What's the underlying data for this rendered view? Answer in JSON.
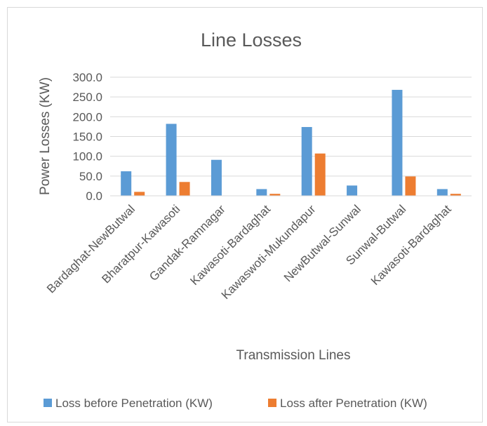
{
  "chart_data": {
    "type": "bar",
    "title": "Line Losses",
    "xlabel": "Transmission Lines",
    "ylabel": "Power Losses (KW)",
    "ylim": [
      0,
      300
    ],
    "yticks": [
      "0.0",
      "50.0",
      "100.0",
      "150.0",
      "200.0",
      "250.0",
      "300.0"
    ],
    "grid": true,
    "legend_position": "bottom",
    "categories": [
      "Bardaghat-NewButwal",
      "Bharatpur-Kawasoti",
      "Gandak-Ramnagar",
      "Kawasoti-Bardaghat",
      "Kawaswoti-Mukundapur",
      "NewButwal-Sunwal",
      "Sunwal-Butwal",
      "Kawasoti-Bardaghat"
    ],
    "series": [
      {
        "name": "Loss before Penetration (KW)",
        "color": "#5b9bd5",
        "values": [
          62,
          182,
          91,
          17,
          174,
          26,
          268,
          17
        ]
      },
      {
        "name": "Loss after Penetration (KW)",
        "color": "#ed7d31",
        "values": [
          10,
          35,
          0,
          5,
          107,
          0,
          49,
          5
        ]
      }
    ]
  }
}
